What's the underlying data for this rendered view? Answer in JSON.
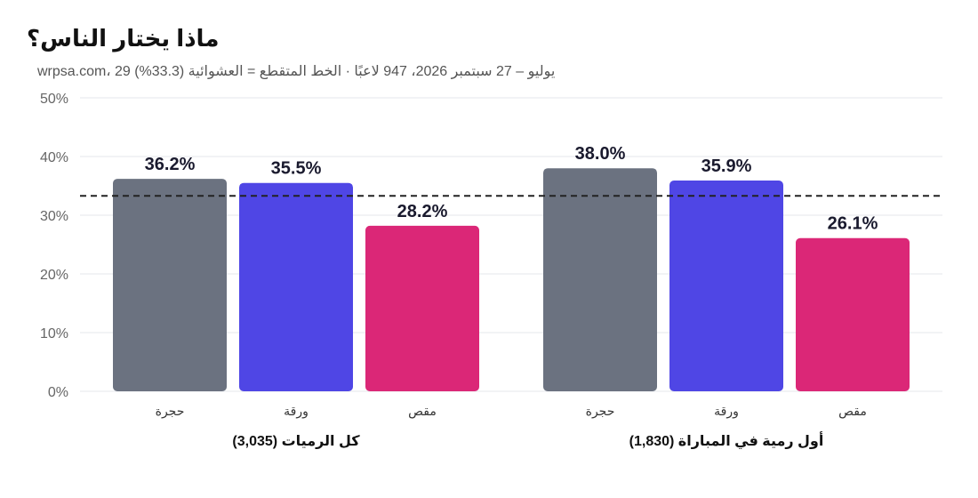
{
  "title": "ماذا يختار الناس؟",
  "subtitle": "يوليو – 27 سبتمبر 2026، 947 لاعبًا · الخط المتقطع = العشوائية (33.3%) 29 ،wrpsa.com",
  "colors": {
    "rock": "#6b7280",
    "paper": "#4f46e5",
    "scissors": "#db2777",
    "grid": "#e5e7eb",
    "reference_line": "#222222"
  },
  "chart_data": {
    "type": "bar",
    "yticks": [
      "0%",
      "10%",
      "20%",
      "30%",
      "40%",
      "50%"
    ],
    "ylim": [
      0,
      50
    ],
    "reference_line": 33.3,
    "grid": true,
    "groups": [
      {
        "label": "كل الرميات (3,035)",
        "categories": [
          "حجرة",
          "ورقة",
          "مقص"
        ],
        "values": [
          36.2,
          35.5,
          28.2
        ],
        "value_labels": [
          "36.2%",
          "35.5%",
          "28.2%"
        ]
      },
      {
        "label": "أول رمية في المباراة (1,830)",
        "categories": [
          "حجرة",
          "ورقة",
          "مقص"
        ],
        "values": [
          38.0,
          35.9,
          26.1
        ],
        "value_labels": [
          "38.0%",
          "35.9%",
          "26.1%"
        ]
      }
    ]
  }
}
